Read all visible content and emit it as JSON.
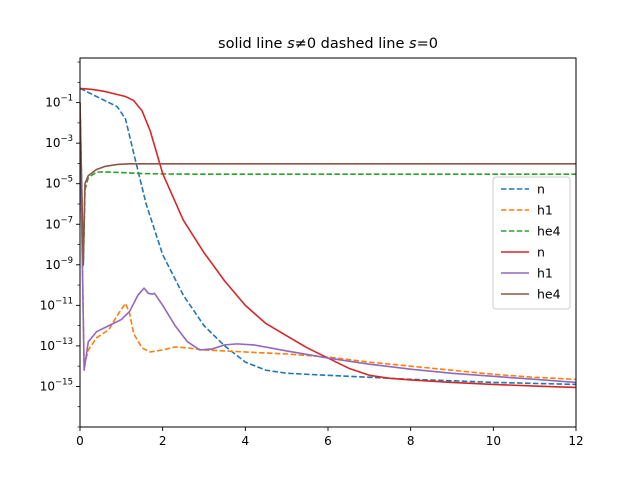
{
  "chart_data": {
    "type": "line",
    "title": {
      "prefix": "solid line ",
      "ineq_op": "≠",
      "mid": " dashed line ",
      "eq_op": "=",
      "rhs": "0",
      "symbol": "s"
    },
    "xlabel": "",
    "ylabel": "",
    "xlim": [
      0,
      12
    ],
    "ylim_log10": [
      -17,
      1.2
    ],
    "yscale": "log",
    "grid": false,
    "legend_position": "center-right",
    "x_ticks": [
      {
        "value": 0,
        "label": "0"
      },
      {
        "value": 2,
        "label": "2"
      },
      {
        "value": 4,
        "label": "4"
      },
      {
        "value": 6,
        "label": "6"
      },
      {
        "value": 8,
        "label": "8"
      },
      {
        "value": 10,
        "label": "10"
      },
      {
        "value": 12,
        "label": "12"
      }
    ],
    "y_ticks": [
      {
        "exp": -1,
        "base": "10",
        "sup": "−1"
      },
      {
        "exp": -3,
        "base": "10",
        "sup": "−3"
      },
      {
        "exp": -5,
        "base": "10",
        "sup": "−5"
      },
      {
        "exp": -7,
        "base": "10",
        "sup": "−7"
      },
      {
        "exp": -9,
        "base": "10",
        "sup": "−9"
      },
      {
        "exp": -11,
        "base": "10",
        "sup": "−11"
      },
      {
        "exp": -13,
        "base": "10",
        "sup": "−13"
      },
      {
        "exp": -15,
        "base": "10",
        "sup": "−15"
      }
    ],
    "series": [
      {
        "name": "n",
        "style": "dashed",
        "color": "#1f77b4",
        "points": [
          [
            0,
            -0.3
          ],
          [
            0.3,
            -0.6
          ],
          [
            0.6,
            -0.9
          ],
          [
            0.9,
            -1.2
          ],
          [
            1.1,
            -1.8
          ],
          [
            1.3,
            -3.5
          ],
          [
            1.6,
            -6.0
          ],
          [
            2.0,
            -8.5
          ],
          [
            2.5,
            -10.5
          ],
          [
            3.0,
            -12.0
          ],
          [
            3.5,
            -13.0
          ],
          [
            4.0,
            -13.8
          ],
          [
            4.5,
            -14.2
          ],
          [
            5.0,
            -14.35
          ],
          [
            6.0,
            -14.45
          ],
          [
            7.0,
            -14.55
          ],
          [
            8.0,
            -14.65
          ],
          [
            9.0,
            -14.72
          ],
          [
            10.0,
            -14.8
          ],
          [
            11.0,
            -14.85
          ],
          [
            12.0,
            -14.9
          ]
        ]
      },
      {
        "name": "h1",
        "style": "dashed",
        "color": "#ff7f0e",
        "points": [
          [
            0,
            -1.5
          ],
          [
            0.05,
            -8.0
          ],
          [
            0.1,
            -14.0
          ],
          [
            0.15,
            -13.6
          ],
          [
            0.2,
            -13.2
          ],
          [
            0.4,
            -12.6
          ],
          [
            0.7,
            -12.2
          ],
          [
            0.9,
            -11.5
          ],
          [
            1.0,
            -11.2
          ],
          [
            1.1,
            -10.9
          ],
          [
            1.2,
            -11.4
          ],
          [
            1.3,
            -12.4
          ],
          [
            1.5,
            -13.1
          ],
          [
            1.7,
            -13.3
          ],
          [
            2.0,
            -13.2
          ],
          [
            2.3,
            -13.05
          ],
          [
            2.6,
            -13.1
          ],
          [
            3.0,
            -13.2
          ],
          [
            4.0,
            -13.3
          ],
          [
            5.0,
            -13.4
          ],
          [
            6.0,
            -13.55
          ],
          [
            7.0,
            -13.8
          ],
          [
            8.0,
            -14.0
          ],
          [
            9.0,
            -14.2
          ],
          [
            10.0,
            -14.4
          ],
          [
            11.0,
            -14.55
          ],
          [
            12.0,
            -14.65
          ]
        ]
      },
      {
        "name": "he4",
        "style": "dashed",
        "color": "#2ca02c",
        "points": [
          [
            0,
            -1.0
          ],
          [
            0.05,
            -6.0
          ],
          [
            0.08,
            -9.0
          ],
          [
            0.12,
            -5.3
          ],
          [
            0.2,
            -4.7
          ],
          [
            0.4,
            -4.43
          ],
          [
            0.6,
            -4.42
          ],
          [
            1.0,
            -4.45
          ],
          [
            1.5,
            -4.5
          ],
          [
            2.0,
            -4.52
          ],
          [
            3.0,
            -4.53
          ],
          [
            6.0,
            -4.53
          ],
          [
            12.0,
            -4.53
          ]
        ]
      },
      {
        "name": "n",
        "style": "solid",
        "color": "#d62728",
        "points": [
          [
            0,
            -0.3
          ],
          [
            0.3,
            -0.35
          ],
          [
            0.6,
            -0.45
          ],
          [
            0.9,
            -0.6
          ],
          [
            1.1,
            -0.7
          ],
          [
            1.3,
            -0.9
          ],
          [
            1.5,
            -1.4
          ],
          [
            1.7,
            -2.4
          ],
          [
            2.0,
            -4.5
          ],
          [
            2.5,
            -6.8
          ],
          [
            3.0,
            -8.4
          ],
          [
            3.5,
            -9.8
          ],
          [
            4.0,
            -11.0
          ],
          [
            4.5,
            -11.9
          ],
          [
            5.0,
            -12.5
          ],
          [
            5.5,
            -13.1
          ],
          [
            6.0,
            -13.6
          ],
          [
            6.5,
            -14.1
          ],
          [
            7.0,
            -14.45
          ],
          [
            7.5,
            -14.6
          ],
          [
            8.0,
            -14.68
          ],
          [
            9.0,
            -14.8
          ],
          [
            10.0,
            -14.9
          ],
          [
            11.0,
            -14.98
          ],
          [
            12.0,
            -15.05
          ]
        ]
      },
      {
        "name": "h1",
        "style": "solid",
        "color": "#9467bd",
        "points": [
          [
            0,
            -1.5
          ],
          [
            0.05,
            -8.0
          ],
          [
            0.1,
            -14.2
          ],
          [
            0.15,
            -13.5
          ],
          [
            0.2,
            -12.8
          ],
          [
            0.4,
            -12.3
          ],
          [
            0.7,
            -12.0
          ],
          [
            1.0,
            -11.7
          ],
          [
            1.2,
            -11.3
          ],
          [
            1.4,
            -10.5
          ],
          [
            1.55,
            -10.15
          ],
          [
            1.65,
            -10.4
          ],
          [
            1.75,
            -10.45
          ],
          [
            1.8,
            -10.4
          ],
          [
            2.0,
            -11.0
          ],
          [
            2.3,
            -12.0
          ],
          [
            2.6,
            -12.8
          ],
          [
            2.9,
            -13.2
          ],
          [
            3.2,
            -13.15
          ],
          [
            3.5,
            -12.95
          ],
          [
            3.8,
            -12.9
          ],
          [
            4.2,
            -12.95
          ],
          [
            5.0,
            -13.25
          ],
          [
            6.0,
            -13.6
          ],
          [
            7.0,
            -13.9
          ],
          [
            8.0,
            -14.15
          ],
          [
            9.0,
            -14.35
          ],
          [
            10.0,
            -14.5
          ],
          [
            11.0,
            -14.65
          ],
          [
            12.0,
            -14.8
          ]
        ]
      },
      {
        "name": "he4",
        "style": "solid",
        "color": "#8c564b",
        "points": [
          [
            0,
            -1.0
          ],
          [
            0.05,
            -6.0
          ],
          [
            0.08,
            -9.0
          ],
          [
            0.12,
            -5.0
          ],
          [
            0.2,
            -4.6
          ],
          [
            0.4,
            -4.3
          ],
          [
            0.6,
            -4.15
          ],
          [
            0.9,
            -4.05
          ],
          [
            1.2,
            -4.02
          ],
          [
            2.0,
            -4.02
          ],
          [
            6.0,
            -4.02
          ],
          [
            12.0,
            -4.02
          ]
        ]
      }
    ]
  }
}
